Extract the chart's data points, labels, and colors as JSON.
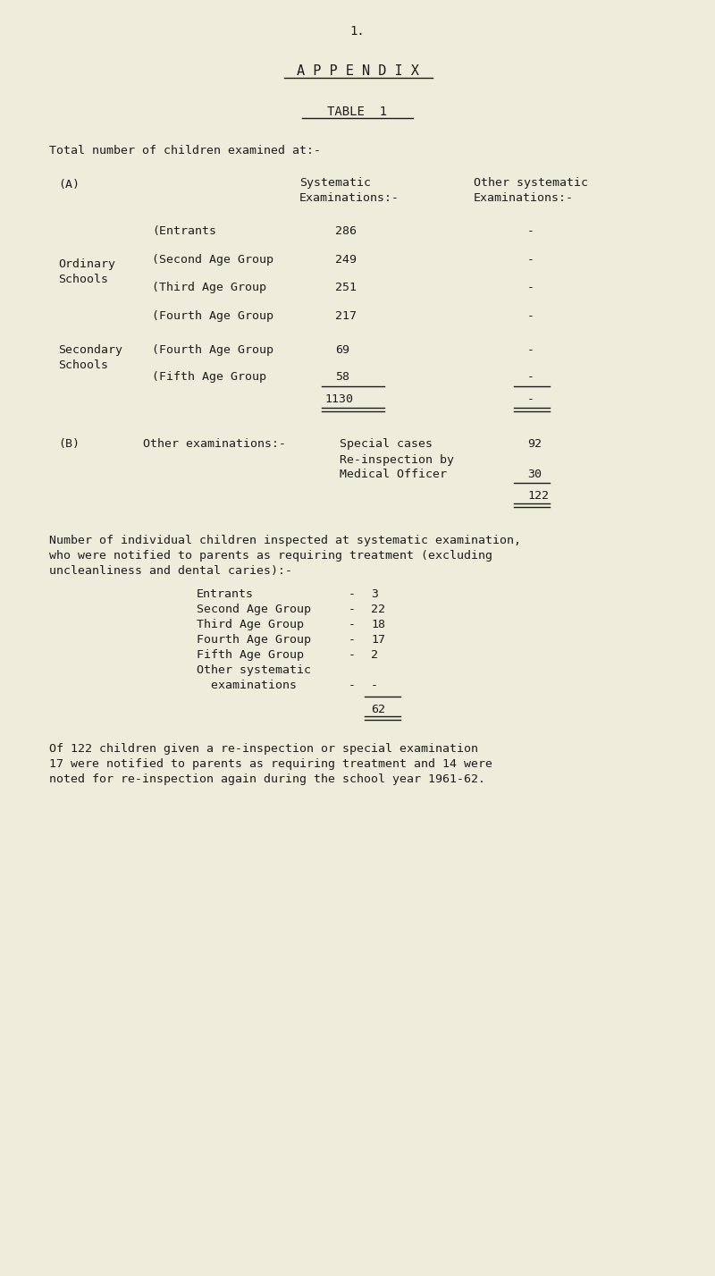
{
  "bg_color": "#eeecda",
  "text_color": "#1c1c1c",
  "page_number": "1.",
  "title1": "A P P E N D I X",
  "title2": "TABLE  1",
  "intro": "Total number of children examined at:-",
  "section_a_label": "(A)",
  "col1_header_1": "Systematic",
  "col1_header_2": "Examinations:-",
  "col2_header_1": "Other systematic",
  "col2_header_2": "Examinations:-",
  "ordinary_label_1": "Ordinary",
  "ordinary_label_2": "Schools",
  "secondary_label_1": "Secondary",
  "secondary_label_2": "Schools",
  "table_rows": [
    {
      "label": "(Entrants",
      "v1": "286",
      "v2": "-"
    },
    {
      "label": "(Second Age Group",
      "v1": "249",
      "v2": "-"
    },
    {
      "label": "(Third Age Group",
      "v1": "251",
      "v2": "-"
    },
    {
      "label": "(Fourth Age Group",
      "v1": "217",
      "v2": "-"
    },
    {
      "label": "(Fourth Age Group",
      "v1": "69",
      "v2": "-"
    },
    {
      "label": "(Fifth Age Group",
      "v1": "58",
      "v2": "-"
    }
  ],
  "total_v1": "1130",
  "total_v2": "-",
  "section_b_label": "(B)",
  "section_b_intro": "Other examinations:-",
  "spec_cases_label": "Special cases",
  "spec_cases_val": "92",
  "reinspect_label_1": "Re-inspection by",
  "reinspect_label_2": "Medical Officer",
  "reinspect_val": "30",
  "section_b_total": "122",
  "para2_lines": [
    "Number of individual children inspected at systematic examination,",
    "who were notified to parents as requiring treatment (excluding",
    "uncleanliness and dental caries):-"
  ],
  "notified_rows": [
    {
      "label": "Entrants",
      "dash": "-",
      "val": "3"
    },
    {
      "label": "Second Age Group",
      "dash": "-",
      "val": "22"
    },
    {
      "label": "Third Age Group",
      "dash": "-",
      "val": "18"
    },
    {
      "label": "Fourth Age Group",
      "dash": "-",
      "val": "17"
    },
    {
      "label": "Fifth Age Group",
      "dash": "-",
      "val": "2"
    },
    {
      "label": "Other systematic",
      "dash": "",
      "val": ""
    },
    {
      "label": "  examinations",
      "dash": "-",
      "val": "-"
    }
  ],
  "notified_total": "62",
  "para3_lines": [
    "Of 122 children given a re-inspection or special examination",
    "17 were notified to parents as requiring treatment and 14 were",
    "noted for re-inspection again during the school year 1961-62."
  ]
}
